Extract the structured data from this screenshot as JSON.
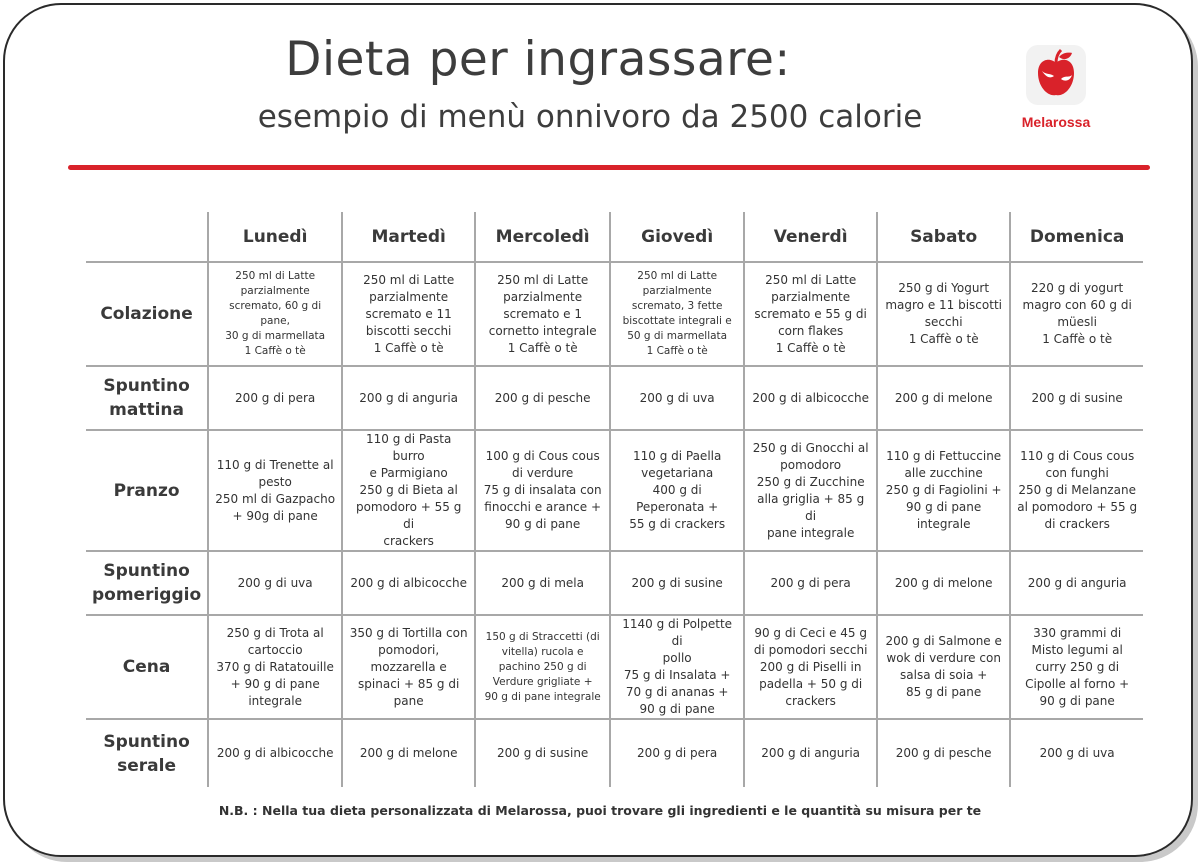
{
  "header": {
    "title": "Dieta per ingrassare:",
    "subtitle": "esempio di menù onnivoro da 2500 calorie",
    "brand": "Melarossa",
    "colors": {
      "accent": "#d9222a",
      "text": "#3d3d3d",
      "grid": "#a8a8a8"
    }
  },
  "table": {
    "days": [
      "Lunedì",
      "Martedì",
      "Mercoledì",
      "Giovedì",
      "Venerdì",
      "Sabato",
      "Domenica"
    ],
    "rows": [
      {
        "meal": "Colazione",
        "cells": [
          "250 ml di Latte\nparzialmente\nscremato, 60 g di pane,\n30 g di marmellata\n1 Caffè o tè",
          "250 ml di Latte\nparzialmente\nscremato e 11\nbiscotti secchi\n1 Caffè o tè",
          "250 ml di Latte\nparzialmente\nscremato e 1\ncornetto integrale\n1 Caffè o tè",
          "250 ml di Latte\nparzialmente\nscremato, 3 fette\nbiscottate integrali e\n50 g di marmellata\n1 Caffè o tè",
          "250 ml di Latte\nparzialmente\nscremato e 55 g di\ncorn flakes\n1 Caffè o tè",
          "250 g di Yogurt\nmagro e 11 biscotti\nsecchi\n1 Caffè o tè",
          "220 g di yogurt\nmagro con 60 g di\nmüesli\n1 Caffè o tè"
        ]
      },
      {
        "meal": "Spuntino\nmattina",
        "cells": [
          "200 g di pera",
          "200 g di anguria",
          "200 g di pesche",
          "200 g di uva",
          "200 g di albicocche",
          "200 g di melone",
          "200 g di susine"
        ]
      },
      {
        "meal": "Pranzo",
        "cells": [
          "110 g di Trenette al\npesto\n250 ml di Gazpacho\n+ 90g di pane",
          "110 g di Pasta burro\ne Parmigiano\n250 g di Bieta al\npomodoro + 55 g di\ncrackers",
          "100 g di Cous cous\ndi verdure\n75 g di insalata con\nfinocchi e arance +\n90 g di pane",
          "110 g di Paella\nvegetariana\n400 g di\nPeperonata +\n55 g di crackers",
          "250 g di Gnocchi al\npomodoro\n250 g di Zucchine\nalla griglia + 85 g di\npane integrale",
          "110 g di Fettuccine\nalle zucchine\n250 g di Fagiolini +\n90 g di pane\nintegrale",
          "110 g di Cous cous\ncon funghi\n250 g di Melanzane\nal pomodoro + 55 g\ndi crackers"
        ]
      },
      {
        "meal": "Spuntino\npomeriggio",
        "cells": [
          "200 g di uva",
          "200 g di albicocche",
          "200 g di mela",
          "200 g di susine",
          "200 g di pera",
          "200 g di melone",
          "200 g di anguria"
        ]
      },
      {
        "meal": "Cena",
        "cells": [
          "250 g di Trota al\ncartoccio\n370 g di Ratatouille\n+ 90 g di pane\nintegrale",
          "350 g di Tortilla con\npomodori,\nmozzarella e\nspinaci + 85 g di\npane",
          "150 g di Straccetti (di\nvitella) rucola e\npachino 250 g di\nVerdure grigliate +\n90 g di pane integrale",
          "1140 g di Polpette di\npollo\n75 g di Insalata +\n70 g di ananas +\n90 g di pane",
          "90 g di Ceci e 45 g\ndi pomodori secchi\n200 g di Piselli in\npadella + 50 g di\ncrackers",
          "200 g di Salmone e\nwok di verdure con\nsalsa di soia +\n85 g di pane",
          "330 grammi di\nMisto legumi al\ncurry  250 g di\nCipolle al forno +\n90 g di pane"
        ]
      },
      {
        "meal": "Spuntino\nserale",
        "cells": [
          "200 g di albicocche",
          "200 g di melone",
          "200 g di susine",
          "200 g di pera",
          "200 g di anguria",
          "200 g di pesche",
          "200 g di uva"
        ]
      }
    ]
  },
  "footer": {
    "note": "N.B. : Nella tua dieta personalizzata di Melarossa, puoi trovare gli ingredienti e le quantità su misura per te"
  }
}
